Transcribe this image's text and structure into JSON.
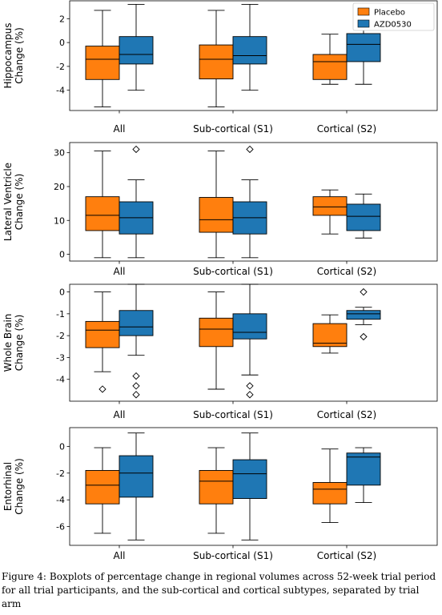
{
  "colors": {
    "placebo": "#ff7f0e",
    "azd": "#1f77b4",
    "frame": "#000000",
    "whisker": "#000000",
    "median": "#000000"
  },
  "caption": {
    "label": "Figure 4:",
    "text": "Boxplots of percentage change in regional volumes across 52-week trial period for all trial participants, and the sub-cortical and cortical subtypes, separated by trial arm"
  },
  "chart_data": [
    {
      "type": "box",
      "ylabel": [
        "Hippocampus",
        "Change (%)"
      ],
      "categories": [
        "All",
        "Sub-cortical (S1)",
        "Cortical (S2)"
      ],
      "ylim": [
        -5.7,
        3.5
      ],
      "yticks": [
        -4,
        -2,
        0,
        2
      ],
      "legend": {
        "placement": "top-right",
        "entries": [
          "Placebo",
          "AZD0530"
        ]
      },
      "series": [
        {
          "name": "Placebo",
          "boxes": [
            {
              "whislo": -5.4,
              "q1": -3.1,
              "med": -1.4,
              "q3": -0.3,
              "whishi": 2.7,
              "fliers": []
            },
            {
              "whislo": -5.4,
              "q1": -3.05,
              "med": -1.4,
              "q3": -0.2,
              "whishi": 2.7,
              "fliers": []
            },
            {
              "whislo": -3.5,
              "q1": -3.1,
              "med": -1.6,
              "q3": -1.0,
              "whishi": 0.7,
              "fliers": []
            }
          ]
        },
        {
          "name": "AZD0530",
          "boxes": [
            {
              "whislo": -4.0,
              "q1": -1.8,
              "med": -1.0,
              "q3": 0.5,
              "whishi": 3.2,
              "fliers": []
            },
            {
              "whislo": -4.0,
              "q1": -1.8,
              "med": -1.1,
              "q3": 0.5,
              "whishi": 3.2,
              "fliers": []
            },
            {
              "whislo": -3.5,
              "q1": -1.6,
              "med": -0.15,
              "q3": 0.75,
              "whishi": 1.4,
              "fliers": []
            }
          ]
        }
      ]
    },
    {
      "type": "box",
      "ylabel": [
        "Lateral Ventricle",
        "Change (%)"
      ],
      "categories": [
        "All",
        "Sub-cortical (S1)",
        "Cortical (S2)"
      ],
      "ylim": [
        -2,
        33
      ],
      "yticks": [
        0,
        10,
        20,
        30
      ],
      "series": [
        {
          "name": "Placebo",
          "boxes": [
            {
              "whislo": -1.0,
              "q1": 7.0,
              "med": 11.5,
              "q3": 17.0,
              "whishi": 30.5,
              "fliers": []
            },
            {
              "whislo": -1.0,
              "q1": 6.5,
              "med": 10.2,
              "q3": 16.8,
              "whishi": 30.5,
              "fliers": []
            },
            {
              "whislo": 6.0,
              "q1": 11.5,
              "med": 14.0,
              "q3": 17.0,
              "whishi": 19.0,
              "fliers": []
            }
          ]
        },
        {
          "name": "AZD0530",
          "boxes": [
            {
              "whislo": -1.0,
              "q1": 6.0,
              "med": 10.8,
              "q3": 15.5,
              "whishi": 22.0,
              "fliers": [
                31.0
              ]
            },
            {
              "whislo": -1.0,
              "q1": 6.0,
              "med": 10.8,
              "q3": 15.5,
              "whishi": 22.0,
              "fliers": [
                31.0
              ]
            },
            {
              "whislo": 4.8,
              "q1": 7.0,
              "med": 11.2,
              "q3": 14.8,
              "whishi": 17.8,
              "fliers": []
            }
          ]
        }
      ]
    },
    {
      "type": "box",
      "ylabel": [
        "Whole Brain",
        "Change (%)"
      ],
      "categories": [
        "All",
        "Sub-cortical (S1)",
        "Cortical (S2)"
      ],
      "ylim": [
        -5.0,
        0.35
      ],
      "yticks": [
        -4,
        -3,
        -2,
        -1,
        0
      ],
      "series": [
        {
          "name": "Placebo",
          "boxes": [
            {
              "whislo": -3.65,
              "q1": -2.55,
              "med": -1.75,
              "q3": -1.35,
              "whishi": 0.0,
              "fliers": [
                -4.45
              ]
            },
            {
              "whislo": -4.45,
              "q1": -2.5,
              "med": -1.7,
              "q3": -1.2,
              "whishi": 0.0,
              "fliers": []
            },
            {
              "whislo": -2.8,
              "q1": -2.5,
              "med": -2.35,
              "q3": -1.45,
              "whishi": -1.05,
              "fliers": []
            }
          ]
        },
        {
          "name": "AZD0530",
          "boxes": [
            {
              "whislo": -2.9,
              "q1": -2.0,
              "med": -1.6,
              "q3": -0.85,
              "whishi": 0.35,
              "fliers": [
                -3.85,
                -4.3,
                -4.7
              ]
            },
            {
              "whislo": -3.8,
              "q1": -2.15,
              "med": -1.85,
              "q3": -1.0,
              "whishi": 0.35,
              "fliers": [
                -4.3,
                -4.7
              ]
            },
            {
              "whislo": -1.5,
              "q1": -1.25,
              "med": -1.0,
              "q3": -0.85,
              "whishi": -0.7,
              "fliers": [
                0.0,
                -2.05
              ]
            }
          ]
        }
      ]
    },
    {
      "type": "box",
      "ylabel": [
        "Entorhinal",
        "Change (%)"
      ],
      "categories": [
        "All",
        "Sub-cortical (S1)",
        "Cortical (S2)"
      ],
      "ylim": [
        -7.4,
        1.4
      ],
      "yticks": [
        -6,
        -4,
        -2,
        0
      ],
      "series": [
        {
          "name": "Placebo",
          "boxes": [
            {
              "whislo": -6.5,
              "q1": -4.3,
              "med": -2.9,
              "q3": -1.8,
              "whishi": -0.1,
              "fliers": []
            },
            {
              "whislo": -6.5,
              "q1": -4.3,
              "med": -2.6,
              "q3": -1.8,
              "whishi": -0.1,
              "fliers": []
            },
            {
              "whislo": -5.7,
              "q1": -4.3,
              "med": -3.2,
              "q3": -2.7,
              "whishi": -0.2,
              "fliers": []
            }
          ]
        },
        {
          "name": "AZD0530",
          "boxes": [
            {
              "whislo": -7.0,
              "q1": -3.8,
              "med": -2.0,
              "q3": -0.7,
              "whishi": 1.0,
              "fliers": []
            },
            {
              "whislo": -7.0,
              "q1": -3.9,
              "med": -2.05,
              "q3": -1.0,
              "whishi": 1.0,
              "fliers": []
            },
            {
              "whislo": -4.2,
              "q1": -2.9,
              "med": -0.8,
              "q3": -0.5,
              "whishi": -0.1,
              "fliers": []
            }
          ]
        }
      ]
    }
  ]
}
